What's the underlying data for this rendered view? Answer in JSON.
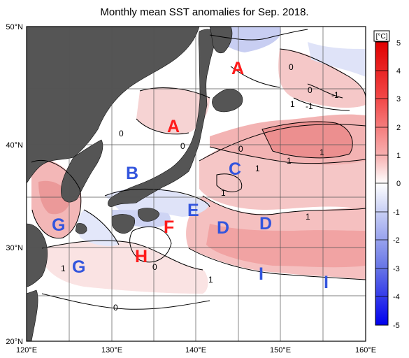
{
  "title": "Monthly mean SST anomalies for Sep. 2018.",
  "axes": {
    "lat_ticks": [
      "50°N",
      "40°N",
      "30°N",
      "20°N"
    ],
    "lon_ticks": [
      "120°E",
      "130°E",
      "140°E",
      "150°E",
      "160°E"
    ]
  },
  "colorbar": {
    "unit": "[°C]",
    "labels": [
      "5",
      "4",
      "3",
      "2",
      "1",
      "0",
      "-1",
      "-2",
      "-3",
      "-4",
      "-5"
    ]
  },
  "regions": [
    {
      "letter": "A",
      "color": "red"
    },
    {
      "letter": "A",
      "color": "red"
    },
    {
      "letter": "B",
      "color": "blue"
    },
    {
      "letter": "C",
      "color": "blue"
    },
    {
      "letter": "D",
      "color": "blue"
    },
    {
      "letter": "D",
      "color": "blue"
    },
    {
      "letter": "E",
      "color": "blue"
    },
    {
      "letter": "F",
      "color": "red"
    },
    {
      "letter": "G",
      "color": "blue"
    },
    {
      "letter": "G",
      "color": "blue"
    },
    {
      "letter": "H",
      "color": "red"
    },
    {
      "letter": "I",
      "color": "blue"
    },
    {
      "letter": "I",
      "color": "blue"
    }
  ],
  "contour_labels": [
    "0",
    "0",
    "-1",
    "1",
    "-1",
    "0",
    "0",
    "1",
    "1",
    "1",
    "1",
    "1",
    "1",
    "0",
    "0",
    "1",
    "0"
  ],
  "colors": {
    "land": "#555555",
    "red_label": "#ff1a1a",
    "blue_label": "#3355dd"
  }
}
